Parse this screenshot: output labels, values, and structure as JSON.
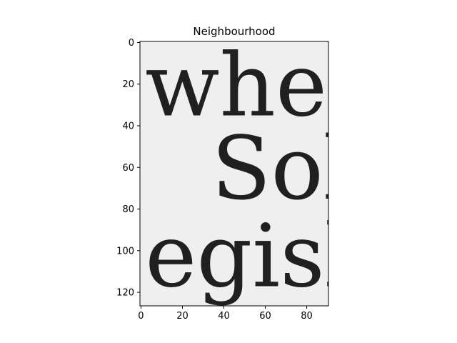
{
  "chart_data": {
    "type": "image",
    "title": "Neighbourhood",
    "xlim": [
      -0.5,
      90.5
    ],
    "ylim": [
      126.5,
      -0.5
    ],
    "x_ticks": [
      0,
      20,
      40,
      60,
      80
    ],
    "y_ticks": [
      0,
      20,
      40,
      60,
      80,
      100,
      120
    ],
    "x_tick_labels": [
      "0",
      "20",
      "40",
      "60",
      "80"
    ],
    "y_tick_labels": [
      "0",
      "20",
      "40",
      "60",
      "80",
      "100",
      "120"
    ],
    "grid": false,
    "colormap": "gray",
    "image_text_lines": [
      {
        "text": "when",
        "x": 2,
        "y": 35,
        "size": 40
      },
      {
        "text": "Solu",
        "x": 34,
        "y": 75,
        "size": 40
      },
      {
        "text": "egisla",
        "x": 2,
        "y": 117,
        "size": 40
      }
    ]
  },
  "colors": {
    "background": "#ffffff",
    "image_paper": "#efefef",
    "ink": "#202020",
    "axis": "#000000"
  }
}
